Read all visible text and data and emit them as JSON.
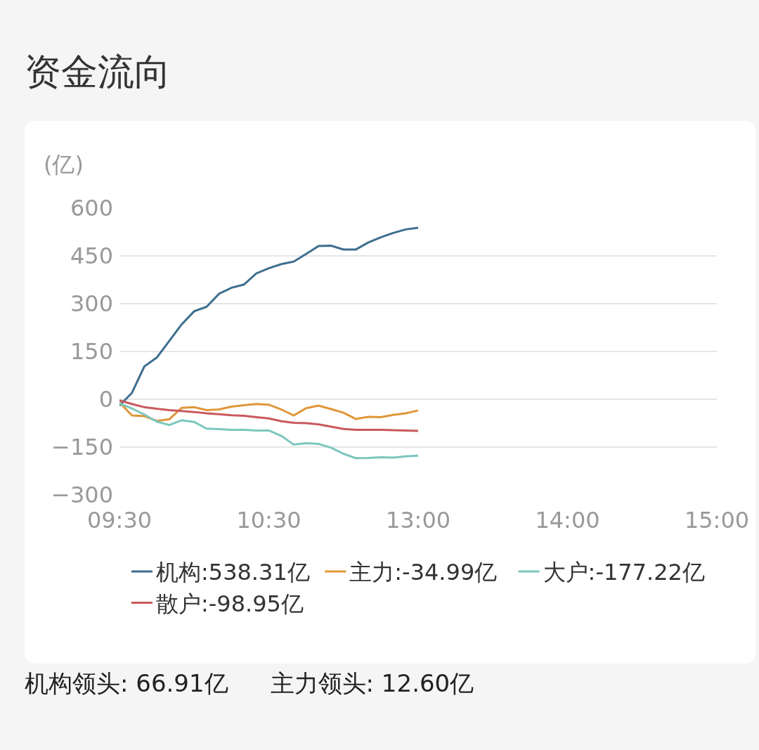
{
  "chart_data": {
    "type": "line",
    "title": "资金流向",
    "ylabel": "(亿)",
    "categories": [
      "09:30",
      null,
      null,
      null,
      null,
      null,
      null,
      null,
      null,
      null,
      null,
      null,
      "10:30",
      null,
      null,
      null,
      null,
      null,
      null,
      null,
      null,
      null,
      null,
      null,
      "13:00",
      null,
      null,
      null,
      null,
      null,
      null,
      null,
      null,
      null,
      null,
      null,
      "14:00",
      null,
      null,
      null,
      null,
      null,
      null,
      null,
      null,
      null,
      null,
      null,
      "15:00"
    ],
    "ylim": [
      -300,
      600
    ],
    "yticks": [
      -300,
      -150,
      0,
      150,
      300,
      450,
      600
    ],
    "grid": "y",
    "legend": "bottom",
    "series": [
      {
        "name": "机构:538.31亿",
        "color": "#3d6e8e",
        "values": [
          -20,
          20,
          103,
          131,
          183,
          235,
          276,
          290,
          331,
          350,
          360,
          395,
          411,
          424,
          432,
          456,
          481,
          482,
          470,
          470,
          492,
          508,
          522,
          533,
          538,
          null,
          null,
          null,
          null,
          null,
          null,
          null,
          null,
          null,
          null,
          null,
          null,
          null,
          null,
          null,
          null,
          null,
          null,
          null,
          null,
          null,
          null,
          null,
          null
        ]
      },
      {
        "name": "主力:-34.99亿",
        "color": "#e0973a",
        "values": [
          -10,
          -51,
          -53,
          -68,
          -63,
          -27,
          -25,
          -34,
          -32,
          -23,
          -19,
          -15,
          -17,
          -32,
          -51,
          -28,
          -20,
          -31,
          -42,
          -62,
          -55,
          -56,
          -49,
          -44,
          -35,
          null,
          null,
          null,
          null,
          null,
          null,
          null,
          null,
          null,
          null,
          null,
          null,
          null,
          null,
          null,
          null,
          null,
          null,
          null,
          null,
          null,
          null,
          null,
          null
        ]
      },
      {
        "name": "大户:-177.22亿",
        "color": "#7cc7bf",
        "values": [
          -13,
          -29,
          -48,
          -70,
          -81,
          -66,
          -71,
          -92,
          -94,
          -96,
          -96,
          -98,
          -98,
          -115,
          -142,
          -138,
          -140,
          -152,
          -171,
          -185,
          -184,
          -182,
          -183,
          -179,
          -177,
          null,
          null,
          null,
          null,
          null,
          null,
          null,
          null,
          null,
          null,
          null,
          null,
          null,
          null,
          null,
          null,
          null,
          null,
          null,
          null,
          null,
          null,
          null,
          null
        ]
      },
      {
        "name": "散户:-98.95亿",
        "color": "#c9595c",
        "values": [
          -4,
          -15,
          -25,
          -30,
          -34,
          -37,
          -40,
          -44,
          -47,
          -50,
          -52,
          -56,
          -60,
          -69,
          -74,
          -75,
          -79,
          -86,
          -93,
          -96,
          -96,
          -96,
          -97,
          -98,
          -99,
          null,
          null,
          null,
          null,
          null,
          null,
          null,
          null,
          null,
          null,
          null,
          null,
          null,
          null,
          null,
          null,
          null,
          null,
          null,
          null,
          null,
          null,
          null,
          null
        ]
      }
    ],
    "annotations": [
      "机构领头: 66.91亿",
      "主力领头: 12.60亿"
    ]
  }
}
